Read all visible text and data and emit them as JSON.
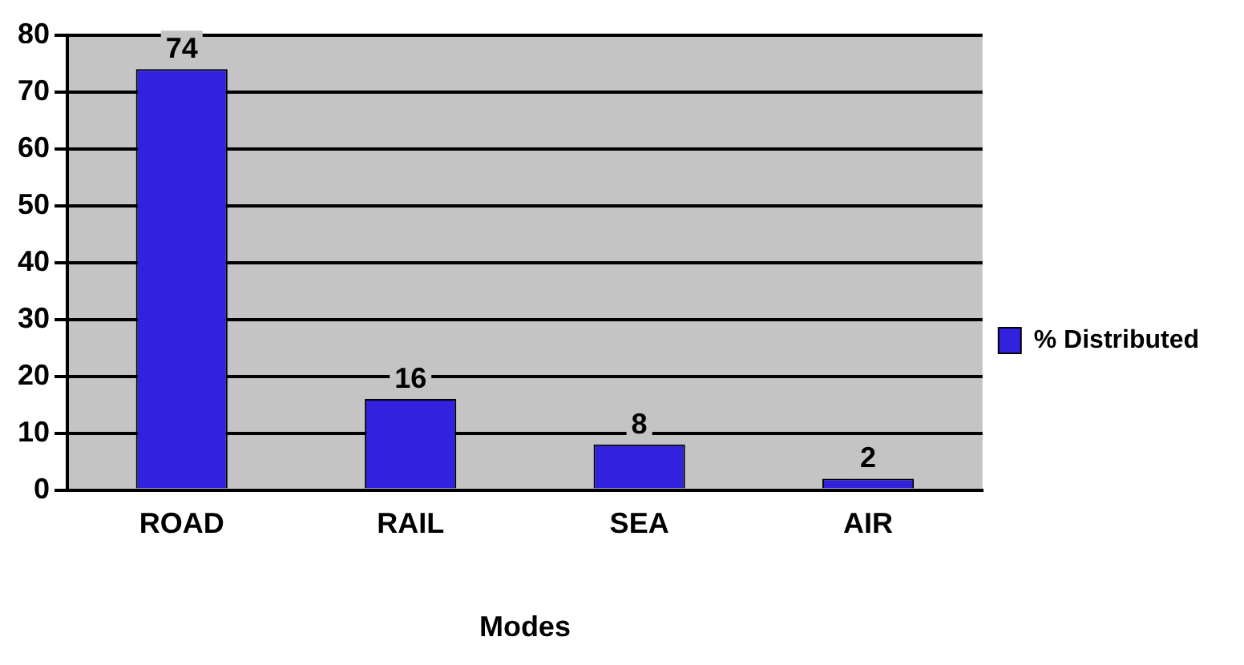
{
  "chart_data": {
    "type": "bar",
    "xlabel": "Modes",
    "categories": [
      "ROAD",
      "RAIL",
      "SEA",
      "AIR"
    ],
    "series": [
      {
        "name": "% Distributed",
        "color": "#3322dd",
        "values": [
          74,
          16,
          8,
          2
        ]
      }
    ],
    "ylim": [
      0,
      80
    ],
    "yticks": [
      0,
      10,
      20,
      30,
      40,
      50,
      60,
      70,
      80
    ],
    "grid": "y",
    "legend": "right",
    "data_labels": true
  }
}
